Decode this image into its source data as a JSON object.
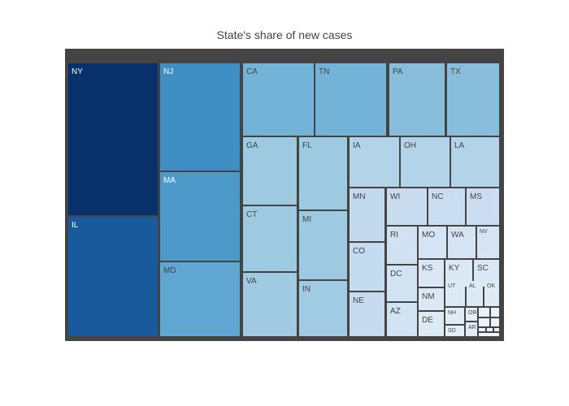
{
  "chart_data": {
    "type": "treemap",
    "title": "State's share of new cases",
    "colorscale": [
      "#f7fbff",
      "#deebf7",
      "#c6dbef",
      "#9ecae1",
      "#6baed6",
      "#4292c6",
      "#2171b5",
      "#08306b"
    ],
    "container_color": "#444444",
    "cells": [
      {
        "label": "NY",
        "value": 5.75
      },
      {
        "label": "IL",
        "value": 4.73
      },
      {
        "label": "NJ",
        "value": 3.03
      },
      {
        "label": "MA",
        "value": 2.66
      },
      {
        "label": "MD",
        "value": 2.14
      },
      {
        "label": "CA",
        "value": 1.72
      },
      {
        "label": "TN",
        "value": 1.72
      },
      {
        "label": "PA",
        "value": 1.38
      },
      {
        "label": "TX",
        "value": 1.38
      },
      {
        "label": "GA",
        "value": 1.06
      },
      {
        "label": "CT",
        "value": 1.06
      },
      {
        "label": "VA",
        "value": 1.04
      },
      {
        "label": "FL",
        "value": 1.06
      },
      {
        "label": "MI",
        "value": 1.06
      },
      {
        "label": "IN",
        "value": 1.02
      },
      {
        "label": "IA",
        "value": 0.72
      },
      {
        "label": "OH",
        "value": 0.72
      },
      {
        "label": "LA",
        "value": 0.72
      },
      {
        "label": "MN",
        "value": 0.52
      },
      {
        "label": "CO",
        "value": 0.48
      },
      {
        "label": "NE",
        "value": 0.46
      },
      {
        "label": "WI",
        "value": 0.4
      },
      {
        "label": "NC",
        "value": 0.38
      },
      {
        "label": "MS",
        "value": 0.38
      },
      {
        "label": "RI",
        "value": 0.3
      },
      {
        "label": "DC",
        "value": 0.28
      },
      {
        "label": "AZ",
        "value": 0.26
      },
      {
        "label": "MO",
        "value": 0.24
      },
      {
        "label": "WA",
        "value": 0.24
      },
      {
        "label": "NV",
        "value": 0.22
      },
      {
        "label": "KS",
        "value": 0.16
      },
      {
        "label": "KY",
        "value": 0.16
      },
      {
        "label": "SC",
        "value": 0.16
      },
      {
        "label": "NM",
        "value": 0.15
      },
      {
        "label": "UT",
        "value": 0.14
      },
      {
        "label": "AL",
        "value": 0.14
      },
      {
        "label": "OK",
        "value": 0.12
      },
      {
        "label": "DE",
        "value": 0.14
      },
      {
        "label": "NH",
        "value": 0.1
      },
      {
        "label": "OR",
        "value": 0.09
      },
      {
        "label": "AR",
        "value": 0.09
      },
      {
        "label": "SD",
        "value": 0.08
      },
      {
        "label": "",
        "value": 0.04
      },
      {
        "label": "",
        "value": 0.03
      },
      {
        "label": "",
        "value": 0.03
      },
      {
        "label": "",
        "value": 0.03
      },
      {
        "label": "",
        "value": 0.02
      },
      {
        "label": "",
        "value": 0.02
      },
      {
        "label": "",
        "value": 0.02
      },
      {
        "label": "",
        "value": 0.02
      }
    ]
  }
}
